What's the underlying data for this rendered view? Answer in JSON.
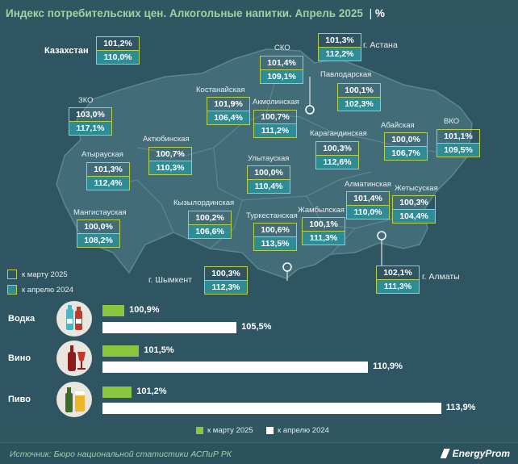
{
  "title": "Индекс потребительских цен. Алкогольные напитки. Апрель 2025",
  "title_unit": "%",
  "colors": {
    "background": "#2f5661",
    "accent_green": "#8cc63f",
    "box_border": "#b7cf4a",
    "box_fill": "#2f8c95"
  },
  "legend": {
    "march": "к марту 2025",
    "april": "к апрелю 2024"
  },
  "chart_data": [
    {
      "type": "table",
      "title": "Индекс потребительских цен. Алкогольные напитки. Апрель 2025",
      "columns": [
        "к марту 2025",
        "к апрелю 2024"
      ],
      "unit": "%",
      "regions": [
        {
          "name": "Казахстан",
          "march": "101,2%",
          "april": "110,0%"
        },
        {
          "name": "СКО",
          "march": "101,4%",
          "april": "109,1%"
        },
        {
          "name": "г. Астана",
          "march": "101,3%",
          "april": "112,2%"
        },
        {
          "name": "Павлодарская",
          "march": "100,1%",
          "april": "102,3%"
        },
        {
          "name": "ЗКО",
          "march": "103,0%",
          "april": "117,1%"
        },
        {
          "name": "Костанайская",
          "march": "101,9%",
          "april": "106,4%"
        },
        {
          "name": "Акмолинская",
          "march": "100,7%",
          "april": "111,2%"
        },
        {
          "name": "Актюбинская",
          "march": "100,7%",
          "april": "110,3%"
        },
        {
          "name": "Абайская",
          "march": "100,0%",
          "april": "106,7%"
        },
        {
          "name": "ВКО",
          "march": "101,1%",
          "april": "109,5%"
        },
        {
          "name": "Атырауская",
          "march": "101,3%",
          "april": "112,4%"
        },
        {
          "name": "Карагандинская",
          "march": "100,3%",
          "april": "112,6%"
        },
        {
          "name": "Улытауская",
          "march": "100,0%",
          "april": "110,4%"
        },
        {
          "name": "Алматинская",
          "march": "101,4%",
          "april": "110,0%"
        },
        {
          "name": "Жетысуская",
          "march": "100,3%",
          "april": "104,4%"
        },
        {
          "name": "Мангистауская",
          "march": "100,0%",
          "april": "108,2%"
        },
        {
          "name": "Кызылординская",
          "march": "100,2%",
          "april": "106,6%"
        },
        {
          "name": "Туркестанская",
          "march": "100,6%",
          "april": "113,5%"
        },
        {
          "name": "Жамбылская",
          "march": "100,1%",
          "april": "111,3%"
        },
        {
          "name": "г. Шымкент",
          "march": "100,3%",
          "april": "112,3%"
        },
        {
          "name": "г. Алматы",
          "march": "102,1%",
          "april": "111,3%"
        }
      ]
    },
    {
      "type": "bar",
      "categories": [
        "Водка",
        "Вино",
        "Пиво"
      ],
      "series": [
        {
          "name": "к марту 2025",
          "values": [
            100.9,
            101.5,
            101.2
          ],
          "labels": [
            "100,9%",
            "101,5%",
            "101,2%"
          ],
          "color": "#8cc63f"
        },
        {
          "name": "к апрелю 2024",
          "values": [
            105.5,
            110.9,
            113.9
          ],
          "labels": [
            "105,5%",
            "110,9%",
            "113,9%"
          ],
          "color": "#ffffff"
        }
      ]
    }
  ],
  "footer": {
    "source": "Источник: Бюро национальной статистики АСПиР РК",
    "brand": "EnergyProm"
  }
}
